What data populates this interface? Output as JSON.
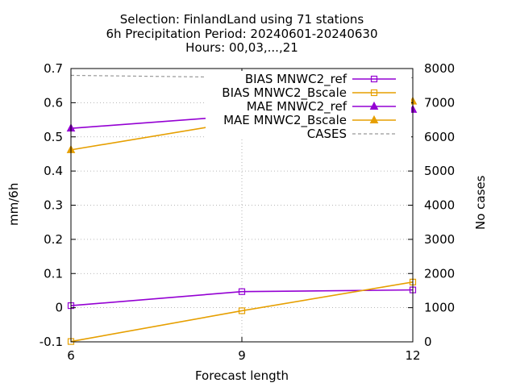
{
  "titles": {
    "line1": "Selection: FinlandLand using    71 stations",
    "line2": "6h Precipitation   Period: 20240601-20240630",
    "line3": "Hours: 00,03,...,21"
  },
  "chart_data": {
    "type": "line",
    "xlabel": "Forecast length",
    "ylabel": "mm/6h",
    "y2label": "No cases",
    "x": [
      6,
      9,
      12
    ],
    "xlim": [
      6,
      12
    ],
    "ylim": [
      -0.1,
      0.7
    ],
    "y2lim": [
      0,
      8000
    ],
    "xticks": [
      "6",
      "9",
      "12"
    ],
    "yticks": [
      "-0.1",
      "0",
      "0.1",
      "0.2",
      "0.3",
      "0.4",
      "0.5",
      "0.6",
      "0.7"
    ],
    "y2ticks": [
      "0",
      "1000",
      "2000",
      "3000",
      "4000",
      "5000",
      "6000",
      "7000",
      "8000"
    ],
    "grid": true,
    "legend_position": "top-right",
    "series": [
      {
        "name": "BIAS MNWC2_ref",
        "color": "#9400d3",
        "marker": "square",
        "axis": "y",
        "values": [
          0.006,
          0.047,
          0.052
        ]
      },
      {
        "name": "BIAS MNWC2_Bscale",
        "color": "#e69f00",
        "marker": "square",
        "axis": "y",
        "values": [
          -0.099,
          -0.009,
          0.075
        ]
      },
      {
        "name": "MAE MNWC2_ref",
        "color": "#9400d3",
        "marker": "triangle",
        "axis": "y",
        "values": [
          0.525,
          0.562,
          0.58
        ]
      },
      {
        "name": "MAE MNWC2_Bscale",
        "color": "#e69f00",
        "marker": "triangle",
        "axis": "y",
        "values": [
          0.462,
          0.545,
          0.604
        ]
      },
      {
        "name": "CASES",
        "color": "#999999",
        "marker": "none",
        "dashed": true,
        "axis": "y2",
        "values": [
          7800,
          7740,
          7730
        ]
      }
    ]
  }
}
